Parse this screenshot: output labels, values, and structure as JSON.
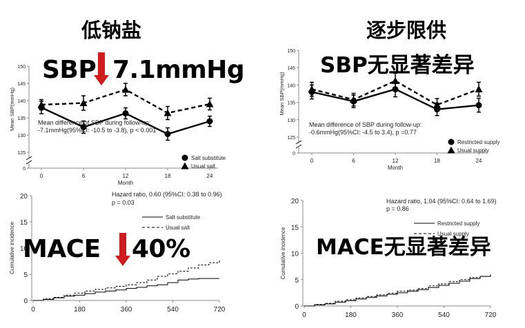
{
  "colors": {
    "arrow": "#d01c1c",
    "line": "#000000",
    "axis": "#888888",
    "text": "#222222"
  },
  "headers": {
    "left": "低钠盐",
    "right": "逐步限供"
  },
  "callouts": {
    "sbp_left": "SBP",
    "sbp_left_value": "7.1mmHg",
    "sbp_right": "SBP无显著差异",
    "mace_left": "MACE",
    "mace_left_value": "40%",
    "mace_right": "MACE无显著差异",
    "arrow_icon": "down-arrow-icon"
  },
  "notes": {
    "sbp_left_line1": "Mean difference of SBP during follow-up:",
    "sbp_left_line2": "-7.1mmHg(95%CI: -10.5 to -3.8), p < 0.001",
    "sbp_right_line1": "Mean difference of SBP during follow-up:",
    "sbp_right_line2": "-0.6mmHg(95%CI: -4.5 to 3.4), p =0.77",
    "hr_left_line1": "Hazard ratio, 0.60 (95%CI: 0.38 to 0.96)",
    "hr_left_line2": "p = 0.03",
    "hr_right_line1": "Hazard ratio, 1.04 (95%CI: 0.64 to 1.69)",
    "hr_right_line2": "p = 0.86"
  },
  "chart_data": [
    {
      "id": "sbp_left",
      "type": "line",
      "xlabel": "Month",
      "ylabel": "Mean SBP(mmHg)",
      "x": [
        0,
        6,
        12,
        18,
        24
      ],
      "ylim": [
        125,
        150
      ],
      "yticks": [
        125,
        130,
        135,
        140,
        145,
        150
      ],
      "axis_break_label": "0",
      "series": [
        {
          "name": "Salt substitute",
          "marker": "circle",
          "style": "solid",
          "values": [
            138,
            132.3,
            136.3,
            130.3,
            134
          ],
          "err": [
            1.8,
            1.8,
            1.6,
            1.8,
            1.5
          ]
        },
        {
          "name": "Usual salt",
          "marker": "triangle",
          "style": "dashed",
          "values": [
            138.8,
            139.3,
            143.2,
            136.4,
            139
          ],
          "err": [
            1.5,
            2.1,
            1.8,
            1.9,
            1.7
          ]
        }
      ],
      "legend": "bottom-right"
    },
    {
      "id": "sbp_right",
      "type": "line",
      "xlabel": "Month",
      "ylabel": "Mean SBP(mmHg)",
      "x": [
        0,
        6,
        12,
        18,
        24
      ],
      "ylim": [
        125,
        150
      ],
      "yticks": [
        125,
        130,
        135,
        140,
        145,
        150
      ],
      "axis_break_label": "0",
      "series": [
        {
          "name": "Restricted supply",
          "marker": "circle",
          "style": "solid",
          "values": [
            138,
            135.3,
            138.8,
            133,
            134.2
          ],
          "err": [
            2,
            1.8,
            2.2,
            1.8,
            2
          ]
        },
        {
          "name": "Usual supply",
          "marker": "triangle",
          "style": "dashed",
          "values": [
            138.8,
            135.8,
            141.2,
            134.3,
            138.8
          ],
          "err": [
            2,
            1.8,
            2.2,
            1.8,
            2
          ]
        }
      ],
      "legend": "bottom-right"
    },
    {
      "id": "mace_left",
      "type": "line",
      "xlabel": "",
      "ylabel": "Cumulative incidence",
      "xticks": [
        0,
        180,
        360,
        540,
        720
      ],
      "xlim": [
        0,
        720
      ],
      "ylim": [
        0,
        20
      ],
      "yticks": [
        0,
        5,
        10,
        15,
        20
      ],
      "series": [
        {
          "name": "Salt substitute",
          "style": "solid",
          "x": [
            0,
            40,
            80,
            120,
            160,
            200,
            240,
            280,
            320,
            360,
            400,
            440,
            480,
            520,
            560,
            600,
            640,
            680,
            720
          ],
          "values": [
            0,
            0.2,
            0.5,
            0.8,
            1.0,
            1.3,
            1.6,
            1.8,
            2.0,
            2.3,
            2.5,
            2.8,
            3.0,
            3.4,
            3.9,
            4.1,
            4.2,
            4.2,
            4.2
          ]
        },
        {
          "name": "Usual salt",
          "style": "dashed",
          "x": [
            0,
            40,
            80,
            120,
            160,
            200,
            240,
            280,
            320,
            360,
            400,
            440,
            480,
            520,
            560,
            600,
            640,
            680,
            720
          ],
          "values": [
            0,
            0.3,
            0.6,
            1.0,
            1.4,
            1.8,
            2.1,
            2.4,
            2.7,
            3.0,
            3.4,
            3.9,
            4.6,
            5.1,
            5.6,
            6.2,
            6.8,
            7.2,
            7.7
          ]
        }
      ],
      "legend": "top-right"
    },
    {
      "id": "mace_right",
      "type": "line",
      "xlabel": "",
      "ylabel": "Cumulative incidence",
      "xticks": [
        0,
        180,
        360,
        540,
        720
      ],
      "xlim": [
        0,
        720
      ],
      "ylim": [
        0,
        20
      ],
      "yticks": [
        0,
        5,
        10,
        15,
        20
      ],
      "series": [
        {
          "name": "Restricted supply",
          "style": "solid",
          "x": [
            0,
            40,
            80,
            120,
            160,
            200,
            240,
            280,
            320,
            360,
            400,
            440,
            480,
            520,
            560,
            600,
            640,
            680,
            720
          ],
          "values": [
            0,
            0.2,
            0.4,
            0.7,
            1.0,
            1.3,
            1.6,
            1.9,
            2.2,
            2.5,
            2.8,
            3.1,
            3.5,
            3.9,
            4.3,
            4.7,
            5.2,
            5.6,
            6.0
          ]
        },
        {
          "name": "Usual supply",
          "style": "dashed",
          "x": [
            0,
            40,
            80,
            120,
            160,
            200,
            240,
            280,
            320,
            360,
            400,
            440,
            480,
            520,
            560,
            600,
            640,
            680,
            720
          ],
          "values": [
            0,
            0.3,
            0.5,
            0.9,
            1.2,
            1.5,
            1.8,
            2.1,
            2.4,
            2.8,
            3.0,
            3.3,
            3.8,
            4.2,
            4.6,
            5.0,
            5.4,
            5.6,
            5.7
          ]
        }
      ],
      "legend": "top-right"
    }
  ]
}
